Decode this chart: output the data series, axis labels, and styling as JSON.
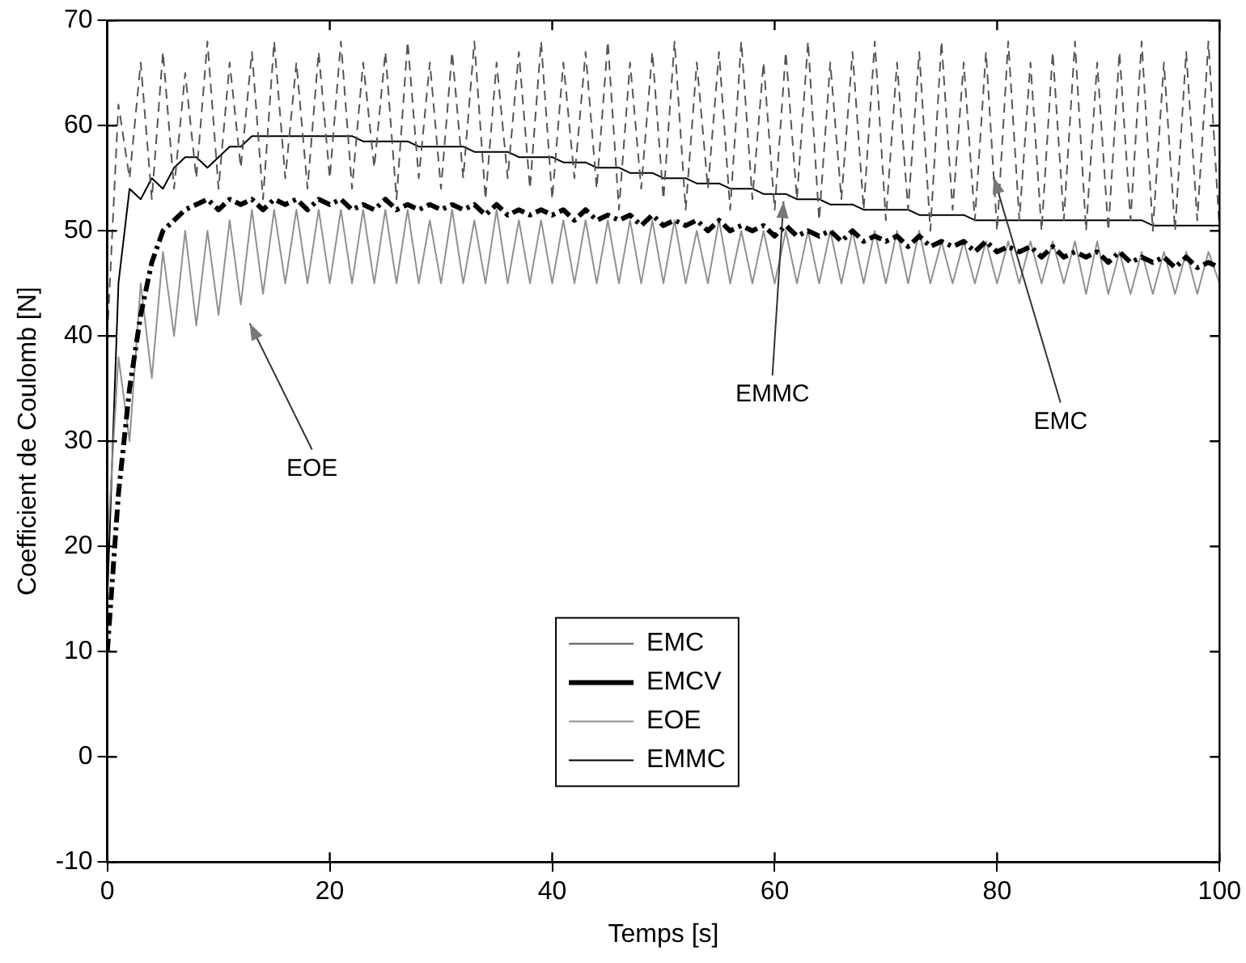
{
  "chart_data": {
    "type": "line",
    "xlabel": "Temps [s]",
    "ylabel": "Coefficient de Coulomb [N]",
    "x": [
      0,
      1,
      2,
      3,
      4,
      5,
      6,
      7,
      8,
      9,
      10,
      11,
      12,
      13,
      14,
      15,
      16,
      17,
      18,
      19,
      20,
      21,
      22,
      23,
      24,
      25,
      26,
      27,
      28,
      29,
      30,
      31,
      32,
      33,
      34,
      35,
      36,
      37,
      38,
      39,
      40,
      41,
      42,
      43,
      44,
      45,
      46,
      47,
      48,
      49,
      50,
      51,
      52,
      53,
      54,
      55,
      56,
      57,
      58,
      59,
      60,
      61,
      62,
      63,
      64,
      65,
      66,
      67,
      68,
      69,
      70,
      71,
      72,
      73,
      74,
      75,
      76,
      77,
      78,
      79,
      80,
      81,
      82,
      83,
      84,
      85,
      86,
      87,
      88,
      89,
      90,
      91,
      92,
      93,
      94,
      95,
      96,
      97,
      98,
      99,
      100
    ],
    "series": [
      {
        "name": "EMC",
        "color": "#555555",
        "line_style": "dashed",
        "values": [
          40,
          62,
          55,
          66,
          53,
          67,
          54,
          65,
          55,
          68,
          54,
          66,
          56,
          67,
          53,
          68,
          55,
          66,
          54,
          67,
          55,
          68,
          54,
          66,
          56,
          67,
          53,
          68,
          55,
          66,
          54,
          67,
          55,
          68,
          53,
          66,
          55,
          67,
          54,
          68,
          53,
          66,
          55,
          67,
          54,
          68,
          52,
          66,
          54,
          67,
          53,
          68,
          52,
          66,
          54,
          67,
          52,
          68,
          53,
          66,
          52,
          67,
          53,
          68,
          51,
          66,
          53,
          67,
          52,
          68,
          51,
          66,
          52,
          67,
          50,
          68,
          52,
          66,
          51,
          67,
          50,
          68,
          51,
          66,
          50,
          67,
          51,
          68,
          50,
          66,
          50,
          67,
          51,
          68,
          50,
          66,
          50,
          67,
          51,
          68,
          50
        ]
      },
      {
        "name": "EMCV",
        "color": "#000000",
        "line_style": "dashdot",
        "values": [
          10,
          25,
          35,
          42,
          47,
          50,
          51,
          52,
          52.5,
          53,
          52,
          53,
          52.5,
          53,
          52,
          53,
          52.5,
          53,
          52,
          53,
          52.5,
          53,
          52,
          52.5,
          52,
          53,
          52,
          52.5,
          52,
          52.5,
          52,
          52.5,
          52,
          52.5,
          51.5,
          52.5,
          51.5,
          52,
          51.5,
          52,
          51.5,
          52,
          51,
          52,
          51,
          51.5,
          51,
          51.5,
          50.5,
          51.5,
          50.5,
          51,
          50.5,
          51,
          50,
          51,
          50,
          50.5,
          50,
          50.5,
          49.5,
          50.5,
          49.5,
          50,
          49.5,
          50,
          49,
          50,
          49,
          49.5,
          49,
          49.5,
          48.5,
          49.5,
          48.5,
          49,
          48.5,
          49,
          48,
          49,
          48,
          48.5,
          48,
          48.5,
          47.5,
          48.5,
          47.5,
          48,
          47.5,
          48,
          47,
          48,
          47,
          47.5,
          47,
          47.5,
          46.5,
          47.5,
          46.5,
          47,
          46.5
        ]
      },
      {
        "name": "EOE",
        "color": "#909090",
        "line_style": "solid",
        "values": [
          20,
          38,
          30,
          45,
          36,
          48,
          40,
          50,
          41,
          50,
          42,
          51,
          43,
          52,
          44,
          52,
          45,
          52,
          45,
          52,
          45,
          52,
          45,
          52,
          45,
          52,
          45,
          52,
          45,
          51,
          45,
          52,
          45,
          51,
          45,
          52,
          45,
          51,
          45,
          51,
          45,
          51,
          45,
          51,
          45,
          51,
          45,
          51,
          45,
          51,
          45,
          51,
          45,
          50,
          45,
          51,
          45,
          50,
          45,
          50,
          45,
          50,
          45,
          50,
          45,
          50,
          45,
          50,
          45,
          50,
          45,
          50,
          45,
          50,
          45,
          49,
          45,
          49,
          45,
          49,
          45,
          49,
          45,
          49,
          45,
          49,
          45,
          49,
          44,
          49,
          44,
          48,
          44,
          48,
          44,
          48,
          44,
          48,
          44,
          48,
          45
        ]
      },
      {
        "name": "EMMC",
        "color": "#000000",
        "line_style": "solid",
        "values": [
          15,
          45,
          54,
          53,
          55,
          54,
          56,
          57,
          57,
          56,
          57,
          58,
          58,
          59,
          59,
          59,
          59,
          59,
          59,
          59,
          59,
          59,
          59,
          58.5,
          58.5,
          58.5,
          58.5,
          58.5,
          58,
          58,
          58,
          58,
          58,
          57.5,
          57.5,
          57.5,
          57.5,
          57,
          57,
          57,
          57,
          56.5,
          56.5,
          56.5,
          56,
          56,
          56,
          55.5,
          55.5,
          55.5,
          55,
          55,
          55,
          54.5,
          54.5,
          54.5,
          54,
          54,
          54,
          53.5,
          53.5,
          53.5,
          53,
          53,
          53,
          52.5,
          52.5,
          52.5,
          52,
          52,
          52,
          52,
          52,
          51.5,
          51.5,
          51.5,
          51.5,
          51.5,
          51,
          51,
          51,
          51,
          51,
          51,
          51,
          51,
          51,
          51,
          51,
          51,
          51,
          51,
          51,
          51,
          50.5,
          50.5,
          50.5,
          50.5,
          50.5,
          50.5,
          50.5
        ]
      }
    ],
    "xlim": [
      0,
      100
    ],
    "xticks": [
      0,
      20,
      40,
      60,
      80,
      100
    ],
    "ylim": [
      -10,
      70
    ],
    "yticks": [
      -10,
      0,
      10,
      20,
      30,
      40,
      50,
      60,
      70
    ],
    "grid": false,
    "legend": "bottom",
    "marker": "none",
    "annotations": [
      "EOE",
      "EMMC",
      {
        "text": "EMC",
        "x": 79.7,
        "y": 55.1
      }
    ]
  }
}
